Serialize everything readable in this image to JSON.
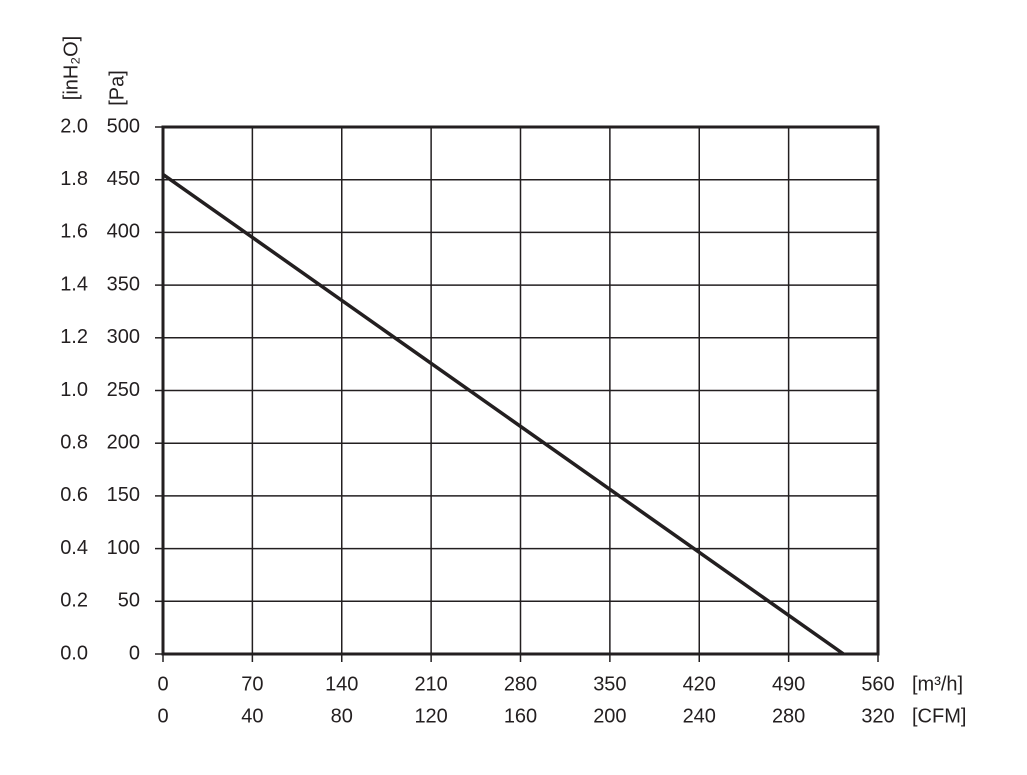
{
  "chart_data": {
    "type": "line",
    "x": [
      0,
      533
    ],
    "values": [
      455,
      0
    ],
    "color": "#231f20",
    "x_label": "[m³/h]",
    "x2_label": "[CFM]",
    "y_label": "[Pa]",
    "y2_label": "[inH₂O]",
    "xlim": [
      0,
      560
    ],
    "xticks": [
      0,
      70,
      140,
      210,
      280,
      350,
      420,
      490,
      560
    ],
    "x2lim": [
      0,
      320
    ],
    "x2ticks": [
      0,
      40,
      80,
      120,
      160,
      200,
      240,
      280,
      320
    ],
    "ylim": [
      0,
      500
    ],
    "yticks": [
      0,
      50,
      100,
      150,
      200,
      250,
      300,
      350,
      400,
      450,
      500
    ],
    "y2lim": [
      0,
      2
    ],
    "y2ticks": [
      {
        "value": 0,
        "label": "0.0"
      },
      0.2,
      0.4,
      0.6,
      0.8,
      {
        "value": 1,
        "label": "1.0"
      },
      1.2,
      1.4,
      1.6,
      1.8,
      {
        "value": 2,
        "label": "2.0"
      }
    ],
    "grid": true
  }
}
